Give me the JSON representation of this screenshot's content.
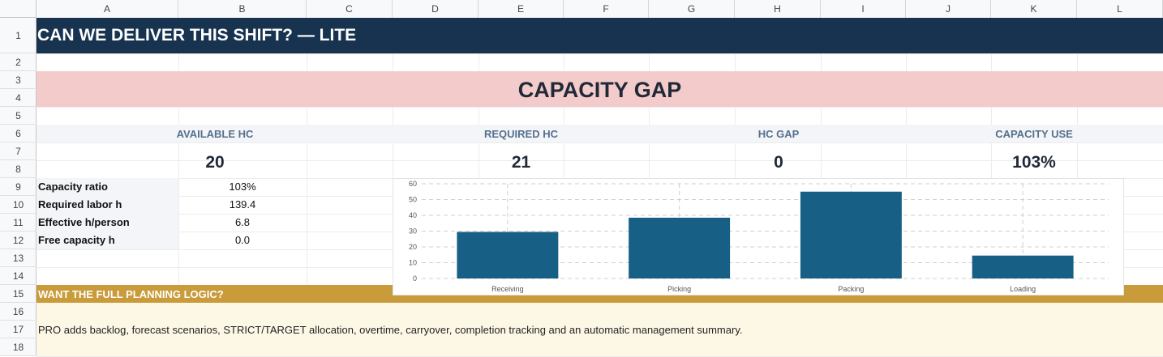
{
  "columns": [
    "A",
    "B",
    "C",
    "D",
    "E",
    "F",
    "G",
    "H",
    "I",
    "J",
    "K",
    "L"
  ],
  "rows": [
    "1",
    "2",
    "3",
    "4",
    "5",
    "6",
    "7",
    "8",
    "9",
    "10",
    "11",
    "12",
    "13",
    "14",
    "15",
    "16",
    "17",
    "18"
  ],
  "title": "CAN WE DELIVER THIS SHIFT? — LITE",
  "gap_banner": "CAPACITY GAP",
  "kpis": [
    {
      "label": "AVAILABLE HC",
      "value": "20"
    },
    {
      "label": "REQUIRED HC",
      "value": "21"
    },
    {
      "label": "HC GAP",
      "value": "0"
    },
    {
      "label": "CAPACITY USE",
      "value": "103%"
    }
  ],
  "metrics": [
    {
      "label": "Capacity ratio",
      "value": "103%"
    },
    {
      "label": "Required labor h",
      "value": "139.4"
    },
    {
      "label": "Effective h/person",
      "value": "6.8"
    },
    {
      "label": "Free capacity h",
      "value": "0.0"
    }
  ],
  "promo": {
    "heading": "WANT THE FULL PLANNING LOGIC?",
    "text": "PRO adds backlog, forecast scenarios, STRICT/TARGET allocation, overtime, carryover, completion tracking and an automatic management summary."
  },
  "colors": {
    "title_bg": "#173350",
    "gap_bg": "#f4cbcb",
    "promo_bg": "#c99b3a",
    "bar": "#175f84"
  },
  "chart_data": {
    "type": "bar",
    "categories": [
      "Receiving",
      "Picking",
      "Packing",
      "Loading"
    ],
    "values": [
      29.5,
      38.5,
      55,
      14.5
    ],
    "yticks": [
      "0",
      "10",
      "20",
      "30",
      "40",
      "50",
      "60"
    ],
    "ylim": [
      0,
      60
    ],
    "grid": true,
    "title": "",
    "xlabel": "",
    "ylabel": ""
  }
}
